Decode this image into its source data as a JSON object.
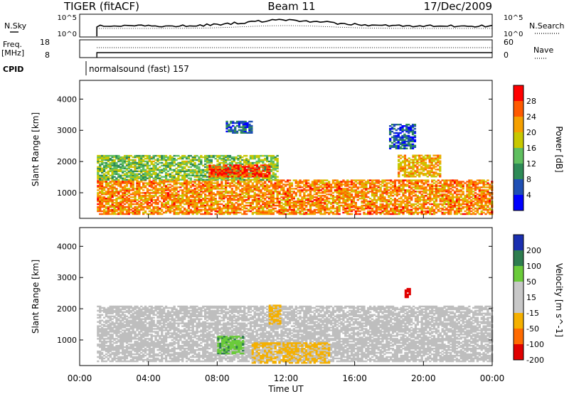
{
  "header": {
    "station": "TIGER (fitACF)",
    "beam": "Beam 11",
    "date": "17/Dec/2009"
  },
  "summary": {
    "nsky_label": "N.Sky",
    "nsearch_label": "N.Search",
    "freq_label_1": "Freq.",
    "freq_label_2": "[MHz]",
    "nave_label": "Nave",
    "cpid_label": "CPID",
    "left_ticks_top": [
      "10^5",
      "10^0"
    ],
    "right_ticks_top": [
      "10^5",
      "10^0"
    ],
    "left_ticks_freq": [
      "18",
      "8"
    ],
    "right_ticks_nave": [
      "60",
      "0"
    ],
    "cpid_text": "normalsound (fast) 157"
  },
  "panels": {
    "power": {
      "ylabel": "Slant Range [km]",
      "colorbar_label": "Power [dB]",
      "colorbar_ticks": [
        "28",
        "24",
        "20",
        "16",
        "12",
        "8",
        "4"
      ]
    },
    "velocity": {
      "ylabel": "Slant Range [km]",
      "colorbar_label": "Velocity [m s^-1]",
      "colorbar_ticks": [
        "200",
        "100",
        "50",
        "15",
        "-15",
        "-50",
        "-100",
        "-200"
      ]
    }
  },
  "xaxis": {
    "label": "Time UT",
    "ticks": [
      "00:00",
      "04:00",
      "08:00",
      "12:00",
      "16:00",
      "20:00",
      "00:00"
    ]
  },
  "colors": {
    "power_scale": [
      "#0000ff",
      "#1f4fb4",
      "#2e8b57",
      "#5fbf5f",
      "#c8c800",
      "#f5a000",
      "#ff5a00",
      "#ff0000"
    ],
    "velocity_scale": [
      "#e00000",
      "#ff6a00",
      "#f5b000",
      "#c8c8c8",
      "#c8c8c8",
      "#6acb3a",
      "#2e7d4f",
      "#1a2fb0"
    ],
    "ground_scatter": "#bebebe"
  },
  "chart_data": [
    {
      "type": "heatmap",
      "title": "Power",
      "xlabel": "Time UT",
      "ylabel": "Slant Range [km]",
      "xlim": [
        "00:00",
        "24:00"
      ],
      "ylim": [
        180,
        4600
      ],
      "y_ticks": [
        1000,
        2000,
        3000,
        4000
      ],
      "color_range": [
        0,
        30
      ],
      "data_start_time_ut": "01:00",
      "regions": [
        {
          "t_start": 1.0,
          "t_end": 24.0,
          "range_min": 300,
          "range_max": 1400,
          "typical_db": 22
        },
        {
          "t_start": 1.0,
          "t_end": 11.5,
          "range_min": 1400,
          "range_max": 2200,
          "typical_db": 14
        },
        {
          "t_start": 7.5,
          "t_end": 11.0,
          "range_min": 1500,
          "range_max": 1900,
          "typical_db": 26
        },
        {
          "t_start": 18.5,
          "t_end": 21.0,
          "range_min": 1500,
          "range_max": 2200,
          "typical_db": 20
        },
        {
          "t_start": 8.5,
          "t_end": 10.0,
          "range_min": 2900,
          "range_max": 3300,
          "typical_db": 6
        },
        {
          "t_start": 18.0,
          "t_end": 19.5,
          "range_min": 2400,
          "range_max": 3200,
          "typical_db": 6
        }
      ]
    },
    {
      "type": "heatmap",
      "title": "Velocity",
      "xlabel": "Time UT",
      "ylabel": "Slant Range [km]",
      "xlim": [
        "00:00",
        "24:00"
      ],
      "ylim": [
        180,
        4600
      ],
      "y_ticks": [
        1000,
        2000,
        3000,
        4000
      ],
      "color_range": [
        -250,
        250
      ],
      "regions": [
        {
          "t_start": 1.0,
          "t_end": 24.0,
          "range_min": 300,
          "range_max": 2100,
          "typical_ms": 0,
          "ground_scatter": true
        },
        {
          "t_start": 8.0,
          "t_end": 9.5,
          "range_min": 550,
          "range_max": 1100,
          "typical_ms": 40
        },
        {
          "t_start": 10.0,
          "t_end": 14.5,
          "range_min": 250,
          "range_max": 900,
          "typical_ms": -60
        },
        {
          "t_start": 11.0,
          "t_end": 11.6,
          "range_min": 1500,
          "range_max": 2100,
          "typical_ms": -60
        },
        {
          "t_start": 18.9,
          "t_end": 19.2,
          "range_min": 2350,
          "range_max": 2650,
          "typical_ms": -220
        }
      ]
    }
  ]
}
